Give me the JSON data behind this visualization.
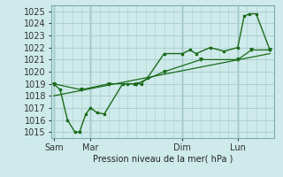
{
  "background_color": "#ceeaea",
  "grid_color": "#aacccc",
  "line_color": "#1a6b1a",
  "marker_color": "#1a6b1a",
  "xlabel": "Pression niveau de la mer( hPa )",
  "ylim": [
    1014.5,
    1025.5
  ],
  "yticks": [
    1015,
    1016,
    1017,
    1018,
    1019,
    1020,
    1021,
    1022,
    1023,
    1024,
    1025
  ],
  "xtick_labels": [
    "Sam",
    "Mar",
    "Dim",
    "Lun"
  ],
  "xtick_positions": [
    0,
    4,
    14,
    20
  ],
  "vlines": [
    0,
    4,
    14,
    20
  ],
  "xlim": [
    -0.3,
    24
  ],
  "series1_x": [
    0,
    0.7,
    1.5,
    2.3,
    2.8,
    3.5,
    4.0,
    4.7,
    5.5,
    7.5,
    8.0,
    8.8,
    9.5,
    10.2,
    12.0,
    14.0,
    14.8,
    15.5,
    17.0,
    18.5,
    20.0,
    20.7,
    21.3,
    22.0,
    23.5
  ],
  "series1_y": [
    1019,
    1018.5,
    1016,
    1015,
    1015,
    1016.5,
    1017,
    1016.6,
    1016.5,
    1019,
    1019,
    1019,
    1019,
    1019.5,
    1021.5,
    1021.5,
    1021.8,
    1021.5,
    1022,
    1021.7,
    1022,
    1024.6,
    1024.8,
    1024.8,
    1021.8
  ],
  "series2_x": [
    0,
    3,
    6,
    9,
    12,
    16,
    20,
    21.5,
    23.5
  ],
  "series2_y": [
    1019,
    1018.5,
    1019,
    1019,
    1020,
    1021,
    1021,
    1021.8,
    1021.8
  ],
  "series3_x": [
    0,
    23.5
  ],
  "series3_y": [
    1018.0,
    1021.5
  ],
  "figsize": [
    3.2,
    2.0
  ],
  "dpi": 100
}
